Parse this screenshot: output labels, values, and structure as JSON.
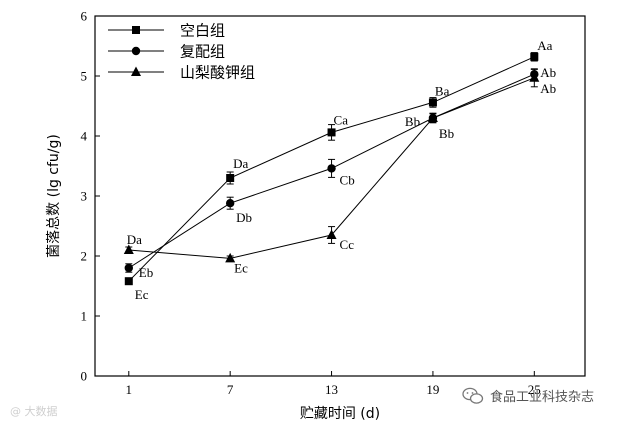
{
  "chart_data": {
    "type": "line",
    "x": [
      1,
      7,
      13,
      19,
      25
    ],
    "xlim": [
      -1,
      28
    ],
    "ylim": [
      0,
      6
    ],
    "xticks": [
      1,
      7,
      13,
      19,
      25
    ],
    "yticks": [
      0,
      1,
      2,
      3,
      4,
      5,
      6
    ],
    "xlabel": "贮藏时间 (d)",
    "ylabel": "菌落总数 (lg cfu/g)",
    "grid": false,
    "legend_position": "top-left",
    "series": [
      {
        "name": "空白组",
        "marker": "square",
        "values": [
          1.58,
          3.3,
          4.06,
          4.56,
          5.32
        ],
        "errors": [
          0.05,
          0.1,
          0.13,
          0.08,
          0.07
        ],
        "labels": [
          "Ec",
          "Da",
          "Ca",
          "Ba",
          "Aa"
        ]
      },
      {
        "name": "复配组",
        "marker": "circle",
        "values": [
          1.8,
          2.88,
          3.46,
          4.3,
          5.03
        ],
        "errors": [
          0.07,
          0.1,
          0.15,
          0.08,
          0.08
        ],
        "labels": [
          "Eb",
          "Db",
          "Cb",
          "Bb",
          "Ab"
        ]
      },
      {
        "name": "山梨酸钾组",
        "marker": "triangle",
        "values": [
          2.1,
          1.96,
          2.35,
          4.3,
          4.97
        ],
        "errors": [
          0.05,
          0.04,
          0.14,
          0.07,
          0.15
        ],
        "labels": [
          "Da",
          "Ec",
          "Cc",
          "Bb",
          "Ab"
        ]
      }
    ]
  },
  "watermarks": {
    "left": "@ 大数据",
    "right": "食品工业科技杂志",
    "right_icon": "wechat-icon"
  }
}
